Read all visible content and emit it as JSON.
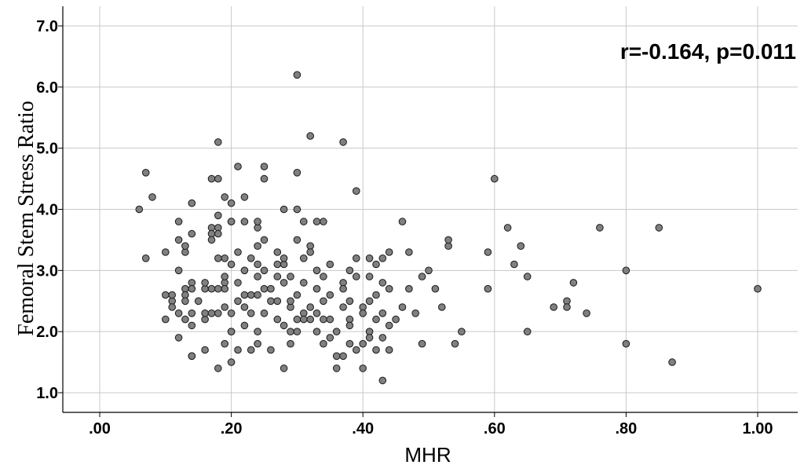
{
  "chart_data": {
    "type": "scatter",
    "xlabel": "MHR",
    "ylabel": "Femoral Stem Stress Ratio",
    "annotation": "r=-0.164, p=0.011",
    "xlim": [
      0.0,
      1.08
    ],
    "ylim": [
      0.8,
      7.3
    ],
    "xticks": [
      0.0,
      0.2,
      0.4,
      0.6,
      0.8,
      1.0
    ],
    "xtick_labels": [
      ".00",
      ".20",
      ".40",
      ".60",
      ".80",
      "1.00"
    ],
    "yticks": [
      1.0,
      2.0,
      3.0,
      4.0,
      5.0,
      6.0,
      7.0
    ],
    "ytick_labels": [
      "1.0",
      "2.0",
      "3.0",
      "4.0",
      "5.0",
      "6.0",
      "7.0"
    ],
    "grid": true,
    "marker_color": "#808080",
    "marker_edge": "#1a1a1a",
    "points": [
      [
        0.06,
        4.0
      ],
      [
        0.07,
        4.6
      ],
      [
        0.07,
        3.2
      ],
      [
        0.08,
        4.2
      ],
      [
        0.1,
        2.2
      ],
      [
        0.1,
        3.3
      ],
      [
        0.1,
        2.6
      ],
      [
        0.11,
        2.5
      ],
      [
        0.11,
        2.6
      ],
      [
        0.11,
        2.4
      ],
      [
        0.12,
        3.5
      ],
      [
        0.12,
        3.8
      ],
      [
        0.12,
        3.0
      ],
      [
        0.12,
        2.3
      ],
      [
        0.12,
        1.9
      ],
      [
        0.13,
        2.7
      ],
      [
        0.13,
        2.6
      ],
      [
        0.13,
        2.5
      ],
      [
        0.13,
        3.3
      ],
      [
        0.13,
        3.4
      ],
      [
        0.13,
        2.2
      ],
      [
        0.14,
        2.3
      ],
      [
        0.14,
        2.1
      ],
      [
        0.14,
        1.6
      ],
      [
        0.14,
        1.6
      ],
      [
        0.14,
        4.1
      ],
      [
        0.14,
        3.6
      ],
      [
        0.14,
        2.8
      ],
      [
        0.14,
        2.7
      ],
      [
        0.15,
        2.5
      ],
      [
        0.16,
        2.2
      ],
      [
        0.16,
        2.3
      ],
      [
        0.16,
        2.7
      ],
      [
        0.16,
        2.8
      ],
      [
        0.16,
        1.7
      ],
      [
        0.17,
        3.7
      ],
      [
        0.17,
        3.6
      ],
      [
        0.17,
        3.5
      ],
      [
        0.17,
        4.5
      ],
      [
        0.17,
        2.3
      ],
      [
        0.17,
        2.7
      ],
      [
        0.18,
        3.9
      ],
      [
        0.18,
        3.2
      ],
      [
        0.18,
        5.1
      ],
      [
        0.18,
        4.5
      ],
      [
        0.18,
        3.7
      ],
      [
        0.18,
        3.6
      ],
      [
        0.18,
        2.3
      ],
      [
        0.18,
        2.7
      ],
      [
        0.18,
        1.4
      ],
      [
        0.19,
        3.2
      ],
      [
        0.19,
        4.2
      ],
      [
        0.19,
        2.8
      ],
      [
        0.19,
        2.9
      ],
      [
        0.19,
        2.4
      ],
      [
        0.19,
        2.7
      ],
      [
        0.19,
        1.8
      ],
      [
        0.2,
        2.0
      ],
      [
        0.2,
        2.3
      ],
      [
        0.2,
        2.0
      ],
      [
        0.2,
        1.5
      ],
      [
        0.2,
        3.1
      ],
      [
        0.2,
        3.8
      ],
      [
        0.2,
        3.8
      ],
      [
        0.2,
        4.1
      ],
      [
        0.21,
        4.7
      ],
      [
        0.21,
        3.3
      ],
      [
        0.21,
        2.8
      ],
      [
        0.21,
        2.5
      ],
      [
        0.21,
        1.7
      ],
      [
        0.22,
        3.8
      ],
      [
        0.22,
        4.2
      ],
      [
        0.22,
        3.0
      ],
      [
        0.22,
        2.4
      ],
      [
        0.22,
        2.1
      ],
      [
        0.22,
        2.6
      ],
      [
        0.23,
        2.6
      ],
      [
        0.23,
        3.2
      ],
      [
        0.23,
        2.3
      ],
      [
        0.23,
        1.7
      ],
      [
        0.24,
        3.1
      ],
      [
        0.24,
        2.9
      ],
      [
        0.24,
        2.6
      ],
      [
        0.24,
        3.4
      ],
      [
        0.24,
        3.7
      ],
      [
        0.24,
        3.8
      ],
      [
        0.24,
        2.0
      ],
      [
        0.24,
        1.8
      ],
      [
        0.25,
        4.7
      ],
      [
        0.25,
        4.5
      ],
      [
        0.25,
        3.0
      ],
      [
        0.25,
        2.7
      ],
      [
        0.25,
        2.3
      ],
      [
        0.25,
        3.5
      ],
      [
        0.26,
        2.7
      ],
      [
        0.26,
        2.5
      ],
      [
        0.26,
        1.7
      ],
      [
        0.27,
        2.5
      ],
      [
        0.27,
        3.3
      ],
      [
        0.27,
        2.2
      ],
      [
        0.27,
        3.1
      ],
      [
        0.27,
        2.9
      ],
      [
        0.28,
        3.1
      ],
      [
        0.28,
        3.2
      ],
      [
        0.28,
        2.8
      ],
      [
        0.28,
        4.0
      ],
      [
        0.28,
        2.1
      ],
      [
        0.28,
        1.4
      ],
      [
        0.29,
        2.4
      ],
      [
        0.29,
        1.8
      ],
      [
        0.29,
        2.5
      ],
      [
        0.29,
        2.9
      ],
      [
        0.29,
        2.0
      ],
      [
        0.3,
        4.6
      ],
      [
        0.3,
        4.0
      ],
      [
        0.3,
        6.2
      ],
      [
        0.3,
        3.5
      ],
      [
        0.3,
        2.6
      ],
      [
        0.3,
        2.2
      ],
      [
        0.3,
        2.0
      ],
      [
        0.31,
        2.8
      ],
      [
        0.31,
        3.2
      ],
      [
        0.31,
        2.3
      ],
      [
        0.31,
        3.8
      ],
      [
        0.31,
        2.2
      ],
      [
        0.32,
        3.4
      ],
      [
        0.32,
        5.2
      ],
      [
        0.32,
        3.3
      ],
      [
        0.32,
        2.4
      ],
      [
        0.32,
        2.2
      ],
      [
        0.33,
        2.3
      ],
      [
        0.33,
        3.0
      ],
      [
        0.33,
        2.0
      ],
      [
        0.33,
        2.7
      ],
      [
        0.33,
        3.8
      ],
      [
        0.34,
        3.8
      ],
      [
        0.34,
        2.9
      ],
      [
        0.34,
        2.5
      ],
      [
        0.34,
        2.2
      ],
      [
        0.34,
        1.8
      ],
      [
        0.35,
        3.1
      ],
      [
        0.35,
        2.6
      ],
      [
        0.35,
        2.2
      ],
      [
        0.35,
        1.9
      ],
      [
        0.36,
        1.4
      ],
      [
        0.36,
        2.0
      ],
      [
        0.36,
        1.6
      ],
      [
        0.37,
        5.1
      ],
      [
        0.37,
        2.8
      ],
      [
        0.37,
        2.7
      ],
      [
        0.37,
        2.4
      ],
      [
        0.37,
        1.6
      ],
      [
        0.38,
        3.0
      ],
      [
        0.38,
        2.5
      ],
      [
        0.38,
        2.2
      ],
      [
        0.38,
        1.8
      ],
      [
        0.38,
        2.1
      ],
      [
        0.39,
        4.3
      ],
      [
        0.39,
        3.2
      ],
      [
        0.39,
        2.9
      ],
      [
        0.39,
        1.7
      ],
      [
        0.4,
        2.4
      ],
      [
        0.4,
        2.3
      ],
      [
        0.4,
        1.8
      ],
      [
        0.4,
        1.4
      ],
      [
        0.41,
        3.2
      ],
      [
        0.41,
        2.9
      ],
      [
        0.41,
        2.5
      ],
      [
        0.41,
        2.0
      ],
      [
        0.41,
        1.9
      ],
      [
        0.42,
        3.1
      ],
      [
        0.42,
        2.6
      ],
      [
        0.42,
        2.2
      ],
      [
        0.42,
        1.7
      ],
      [
        0.43,
        3.2
      ],
      [
        0.43,
        2.8
      ],
      [
        0.43,
        2.3
      ],
      [
        0.43,
        1.9
      ],
      [
        0.43,
        1.2
      ],
      [
        0.44,
        3.3
      ],
      [
        0.44,
        2.7
      ],
      [
        0.44,
        2.1
      ],
      [
        0.44,
        1.7
      ],
      [
        0.45,
        2.2
      ],
      [
        0.46,
        2.4
      ],
      [
        0.46,
        3.8
      ],
      [
        0.47,
        3.3
      ],
      [
        0.47,
        2.7
      ],
      [
        0.48,
        2.3
      ],
      [
        0.49,
        2.9
      ],
      [
        0.49,
        1.8
      ],
      [
        0.5,
        3.0
      ],
      [
        0.51,
        2.7
      ],
      [
        0.52,
        2.4
      ],
      [
        0.53,
        3.4
      ],
      [
        0.53,
        3.5
      ],
      [
        0.54,
        1.8
      ],
      [
        0.55,
        2.0
      ],
      [
        0.59,
        2.7
      ],
      [
        0.59,
        3.3
      ],
      [
        0.6,
        4.5
      ],
      [
        0.62,
        3.7
      ],
      [
        0.63,
        3.1
      ],
      [
        0.64,
        3.4
      ],
      [
        0.65,
        2.9
      ],
      [
        0.65,
        2.0
      ],
      [
        0.69,
        2.4
      ],
      [
        0.71,
        2.5
      ],
      [
        0.71,
        2.4
      ],
      [
        0.72,
        2.8
      ],
      [
        0.74,
        2.3
      ],
      [
        0.76,
        3.7
      ],
      [
        0.8,
        3.0
      ],
      [
        0.8,
        1.8
      ],
      [
        0.85,
        3.7
      ],
      [
        0.87,
        1.5
      ],
      [
        1.0,
        2.7
      ]
    ]
  }
}
